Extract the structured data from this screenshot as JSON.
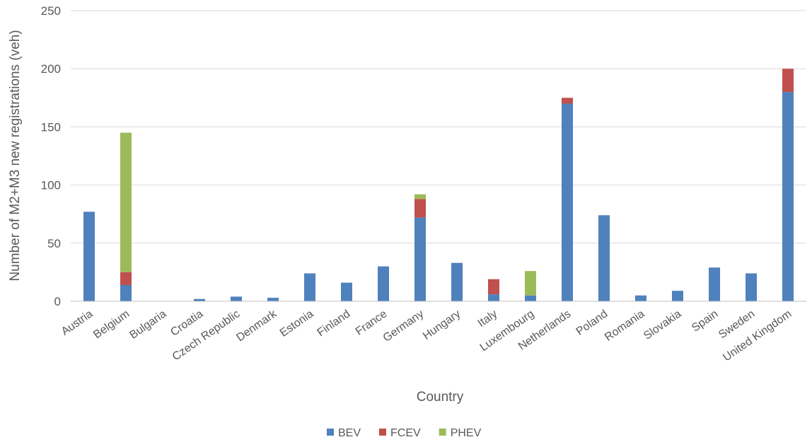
{
  "chart_data": {
    "type": "bar",
    "stacked": true,
    "categories": [
      "Austria",
      "Belgium",
      "Bulgaria",
      "Croatia",
      "Czech Republic",
      "Denmark",
      "Estonia",
      "Finland",
      "France",
      "Germany",
      "Hungary",
      "Italy",
      "Luxembourg",
      "Netherlands",
      "Poland",
      "Romania",
      "Slovakia",
      "Spain",
      "Sweden",
      "United Kingdom"
    ],
    "series": [
      {
        "name": "BEV",
        "color": "#4f81bd",
        "values": [
          77,
          14,
          0,
          2,
          4,
          3,
          24,
          16,
          30,
          72,
          33,
          6,
          5,
          170,
          74,
          5,
          9,
          29,
          24,
          180
        ]
      },
      {
        "name": "FCEV",
        "color": "#c0504d",
        "values": [
          0,
          11,
          0,
          0,
          0,
          0,
          0,
          0,
          0,
          16,
          0,
          13,
          0,
          5,
          0,
          0,
          0,
          0,
          0,
          20
        ]
      },
      {
        "name": "PHEV",
        "color": "#9bbb59",
        "values": [
          0,
          120,
          0,
          0,
          0,
          0,
          0,
          0,
          0,
          4,
          0,
          0,
          21,
          0,
          0,
          0,
          0,
          0,
          0,
          0
        ]
      }
    ],
    "xlabel": "Country",
    "ylabel": "Number of M2+M3 new registrations (veh)",
    "ylim": [
      0,
      250
    ],
    "yticks": [
      0,
      50,
      100,
      150,
      200,
      250
    ],
    "grid": true,
    "legend_position": "bottom"
  }
}
